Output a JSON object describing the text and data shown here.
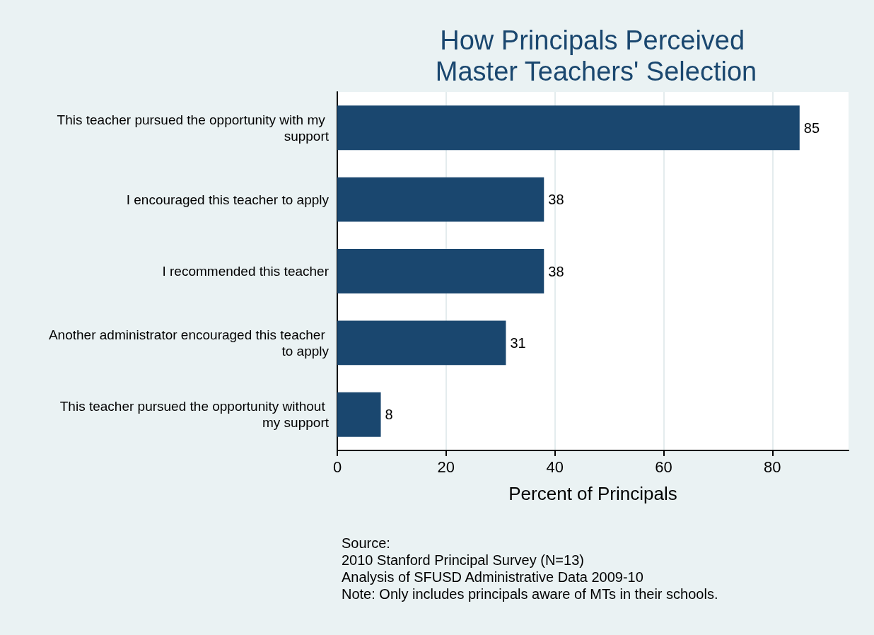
{
  "chart_data": {
    "type": "bar",
    "orientation": "horizontal",
    "title": "How Principals Perceived Master Teachers' Selection",
    "xlabel": "Percent of Principals",
    "categories": [
      "This teacher pursued the opportunity with my support",
      "I encouraged this teacher to apply",
      "I recommended this teacher",
      "Another administrator encouraged this teacher to apply",
      "This teacher pursued the opportunity without my support"
    ],
    "values": [
      85,
      38,
      38,
      31,
      8
    ],
    "color": "#1a476f",
    "data_labels": true,
    "xlim": [
      0,
      94
    ],
    "xticks": [
      0,
      20,
      40,
      60,
      80
    ],
    "grid": "x",
    "legend": false,
    "annotations": [
      "Source:",
      "2010 Stanford Principal Survey (N=13)",
      "Analysis of SFUSD Administrative Data 2009-10",
      "Note: Only includes principals aware of MTs in their schools."
    ]
  }
}
